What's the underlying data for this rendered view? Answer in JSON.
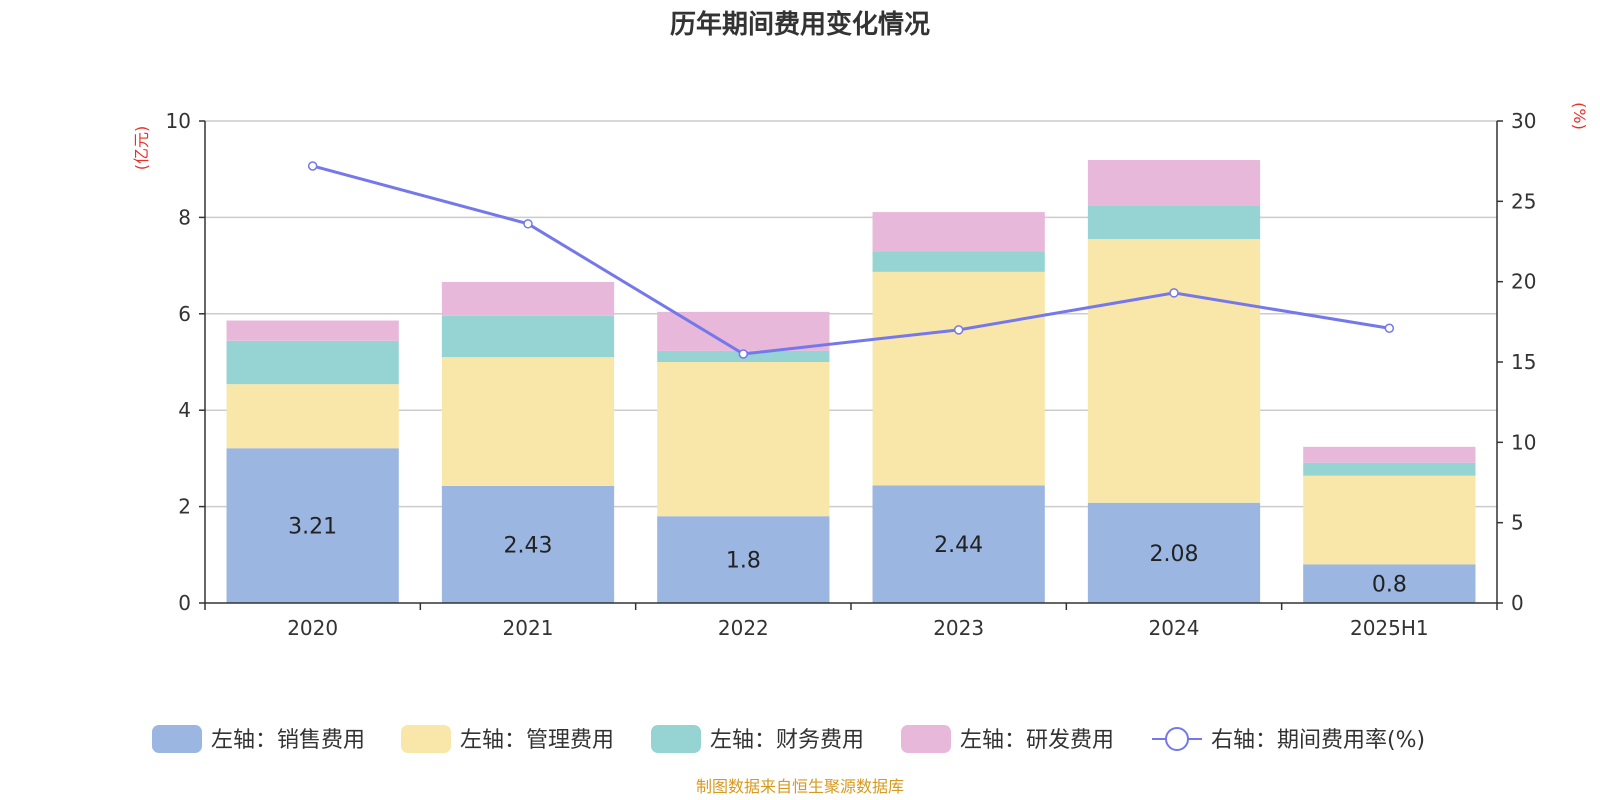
{
  "chart_data": {
    "type": "bar",
    "title": "历年期间费用变化情况",
    "categories": [
      "2020",
      "2021",
      "2022",
      "2023",
      "2024",
      "2025H1"
    ],
    "y_left": {
      "label": "(亿元)",
      "ylim": [
        0,
        10
      ],
      "ticks": [
        "0",
        "2",
        "4",
        "6",
        "8",
        "10"
      ]
    },
    "y_right": {
      "label": "(%)",
      "ylim": [
        0,
        30
      ],
      "ticks": [
        "0",
        "5",
        "10",
        "15",
        "20",
        "25",
        "30"
      ]
    },
    "series": [
      {
        "name": "左轴：销售费用",
        "type": "bar",
        "stack": true,
        "axis": "left",
        "color": "#9ab6e1",
        "values": [
          3.21,
          2.43,
          1.8,
          2.44,
          2.08,
          0.8
        ],
        "labels": [
          "3.21",
          "2.43",
          "1.8",
          "2.44",
          "2.08",
          "0.8"
        ]
      },
      {
        "name": "左轴：管理费用",
        "type": "bar",
        "stack": true,
        "axis": "left",
        "color": "#f8e7a9",
        "values": [
          1.33,
          2.67,
          3.2,
          4.43,
          5.47,
          1.84
        ]
      },
      {
        "name": "左轴：财务费用",
        "type": "bar",
        "stack": true,
        "axis": "left",
        "color": "#96d4d4",
        "values": [
          0.9,
          0.86,
          0.23,
          0.43,
          0.7,
          0.27
        ]
      },
      {
        "name": "左轴：研发费用",
        "type": "bar",
        "stack": true,
        "axis": "left",
        "color": "#e7b8d9",
        "values": [
          0.42,
          0.7,
          0.81,
          0.81,
          0.94,
          0.33
        ]
      },
      {
        "name": "右轴：期间费用率(%)",
        "type": "line",
        "axis": "right",
        "color": "#7578ea",
        "values": [
          27.2,
          23.6,
          15.5,
          17.0,
          19.3,
          17.1
        ]
      }
    ],
    "grid": true,
    "legend": "bottom"
  },
  "source": "制图数据来自恒生聚源数据库",
  "colors": {
    "unit": "#e8302a",
    "source": "#d89a1e",
    "axis": "#333333",
    "grid": "#cccccc"
  }
}
